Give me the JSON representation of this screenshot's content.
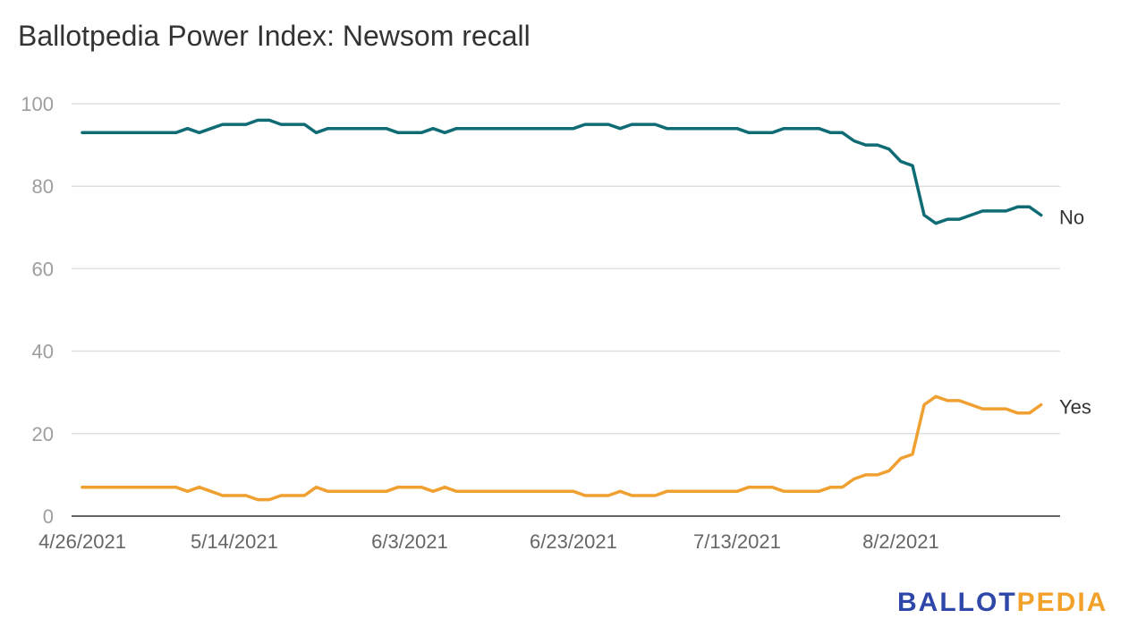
{
  "chart_data": {
    "type": "line",
    "title": "Ballotpedia Power Index: Newsom recall",
    "xlabel": "",
    "ylabel": "",
    "ylim": [
      0,
      100
    ],
    "yticks": [
      "0",
      "20",
      "40",
      "60",
      "80",
      "100"
    ],
    "xtick_labels": [
      {
        "label": "4/26/2021",
        "index": 0
      },
      {
        "label": "5/14/2021",
        "index": 13
      },
      {
        "label": "6/3/2021",
        "index": 28
      },
      {
        "label": "6/23/2021",
        "index": 42
      },
      {
        "label": "7/13/2021",
        "index": 56
      },
      {
        "label": "8/2/2021",
        "index": 70
      }
    ],
    "grid": true,
    "series": [
      {
        "name": "No",
        "color": "#0f6b74",
        "values": [
          93,
          93,
          93,
          93,
          93,
          93,
          93,
          93,
          93,
          94,
          93,
          94,
          95,
          95,
          95,
          96,
          96,
          95,
          95,
          95,
          93,
          94,
          94,
          94,
          94,
          94,
          94,
          93,
          93,
          93,
          94,
          93,
          94,
          94,
          94,
          94,
          94,
          94,
          94,
          94,
          94,
          94,
          94,
          95,
          95,
          95,
          94,
          95,
          95,
          95,
          94,
          94,
          94,
          94,
          94,
          94,
          94,
          93,
          93,
          93,
          94,
          94,
          94,
          94,
          93,
          93,
          91,
          90,
          90,
          89,
          86,
          85,
          73,
          71,
          72,
          72,
          73,
          74,
          74,
          74,
          75,
          75,
          73
        ]
      },
      {
        "name": "Yes",
        "color": "#f0a030",
        "values": [
          7,
          7,
          7,
          7,
          7,
          7,
          7,
          7,
          7,
          6,
          7,
          6,
          5,
          5,
          5,
          4,
          4,
          5,
          5,
          5,
          7,
          6,
          6,
          6,
          6,
          6,
          6,
          7,
          7,
          7,
          6,
          7,
          6,
          6,
          6,
          6,
          6,
          6,
          6,
          6,
          6,
          6,
          6,
          5,
          5,
          5,
          6,
          5,
          5,
          5,
          6,
          6,
          6,
          6,
          6,
          6,
          6,
          7,
          7,
          7,
          6,
          6,
          6,
          6,
          7,
          7,
          9,
          10,
          10,
          11,
          14,
          15,
          27,
          29,
          28,
          28,
          27,
          26,
          26,
          26,
          25,
          25,
          27
        ]
      }
    ]
  },
  "logo": {
    "part1": "BALLOT",
    "part2": "PEDIA",
    "color1": "#2e47a8",
    "color2": "#f2a22a"
  }
}
